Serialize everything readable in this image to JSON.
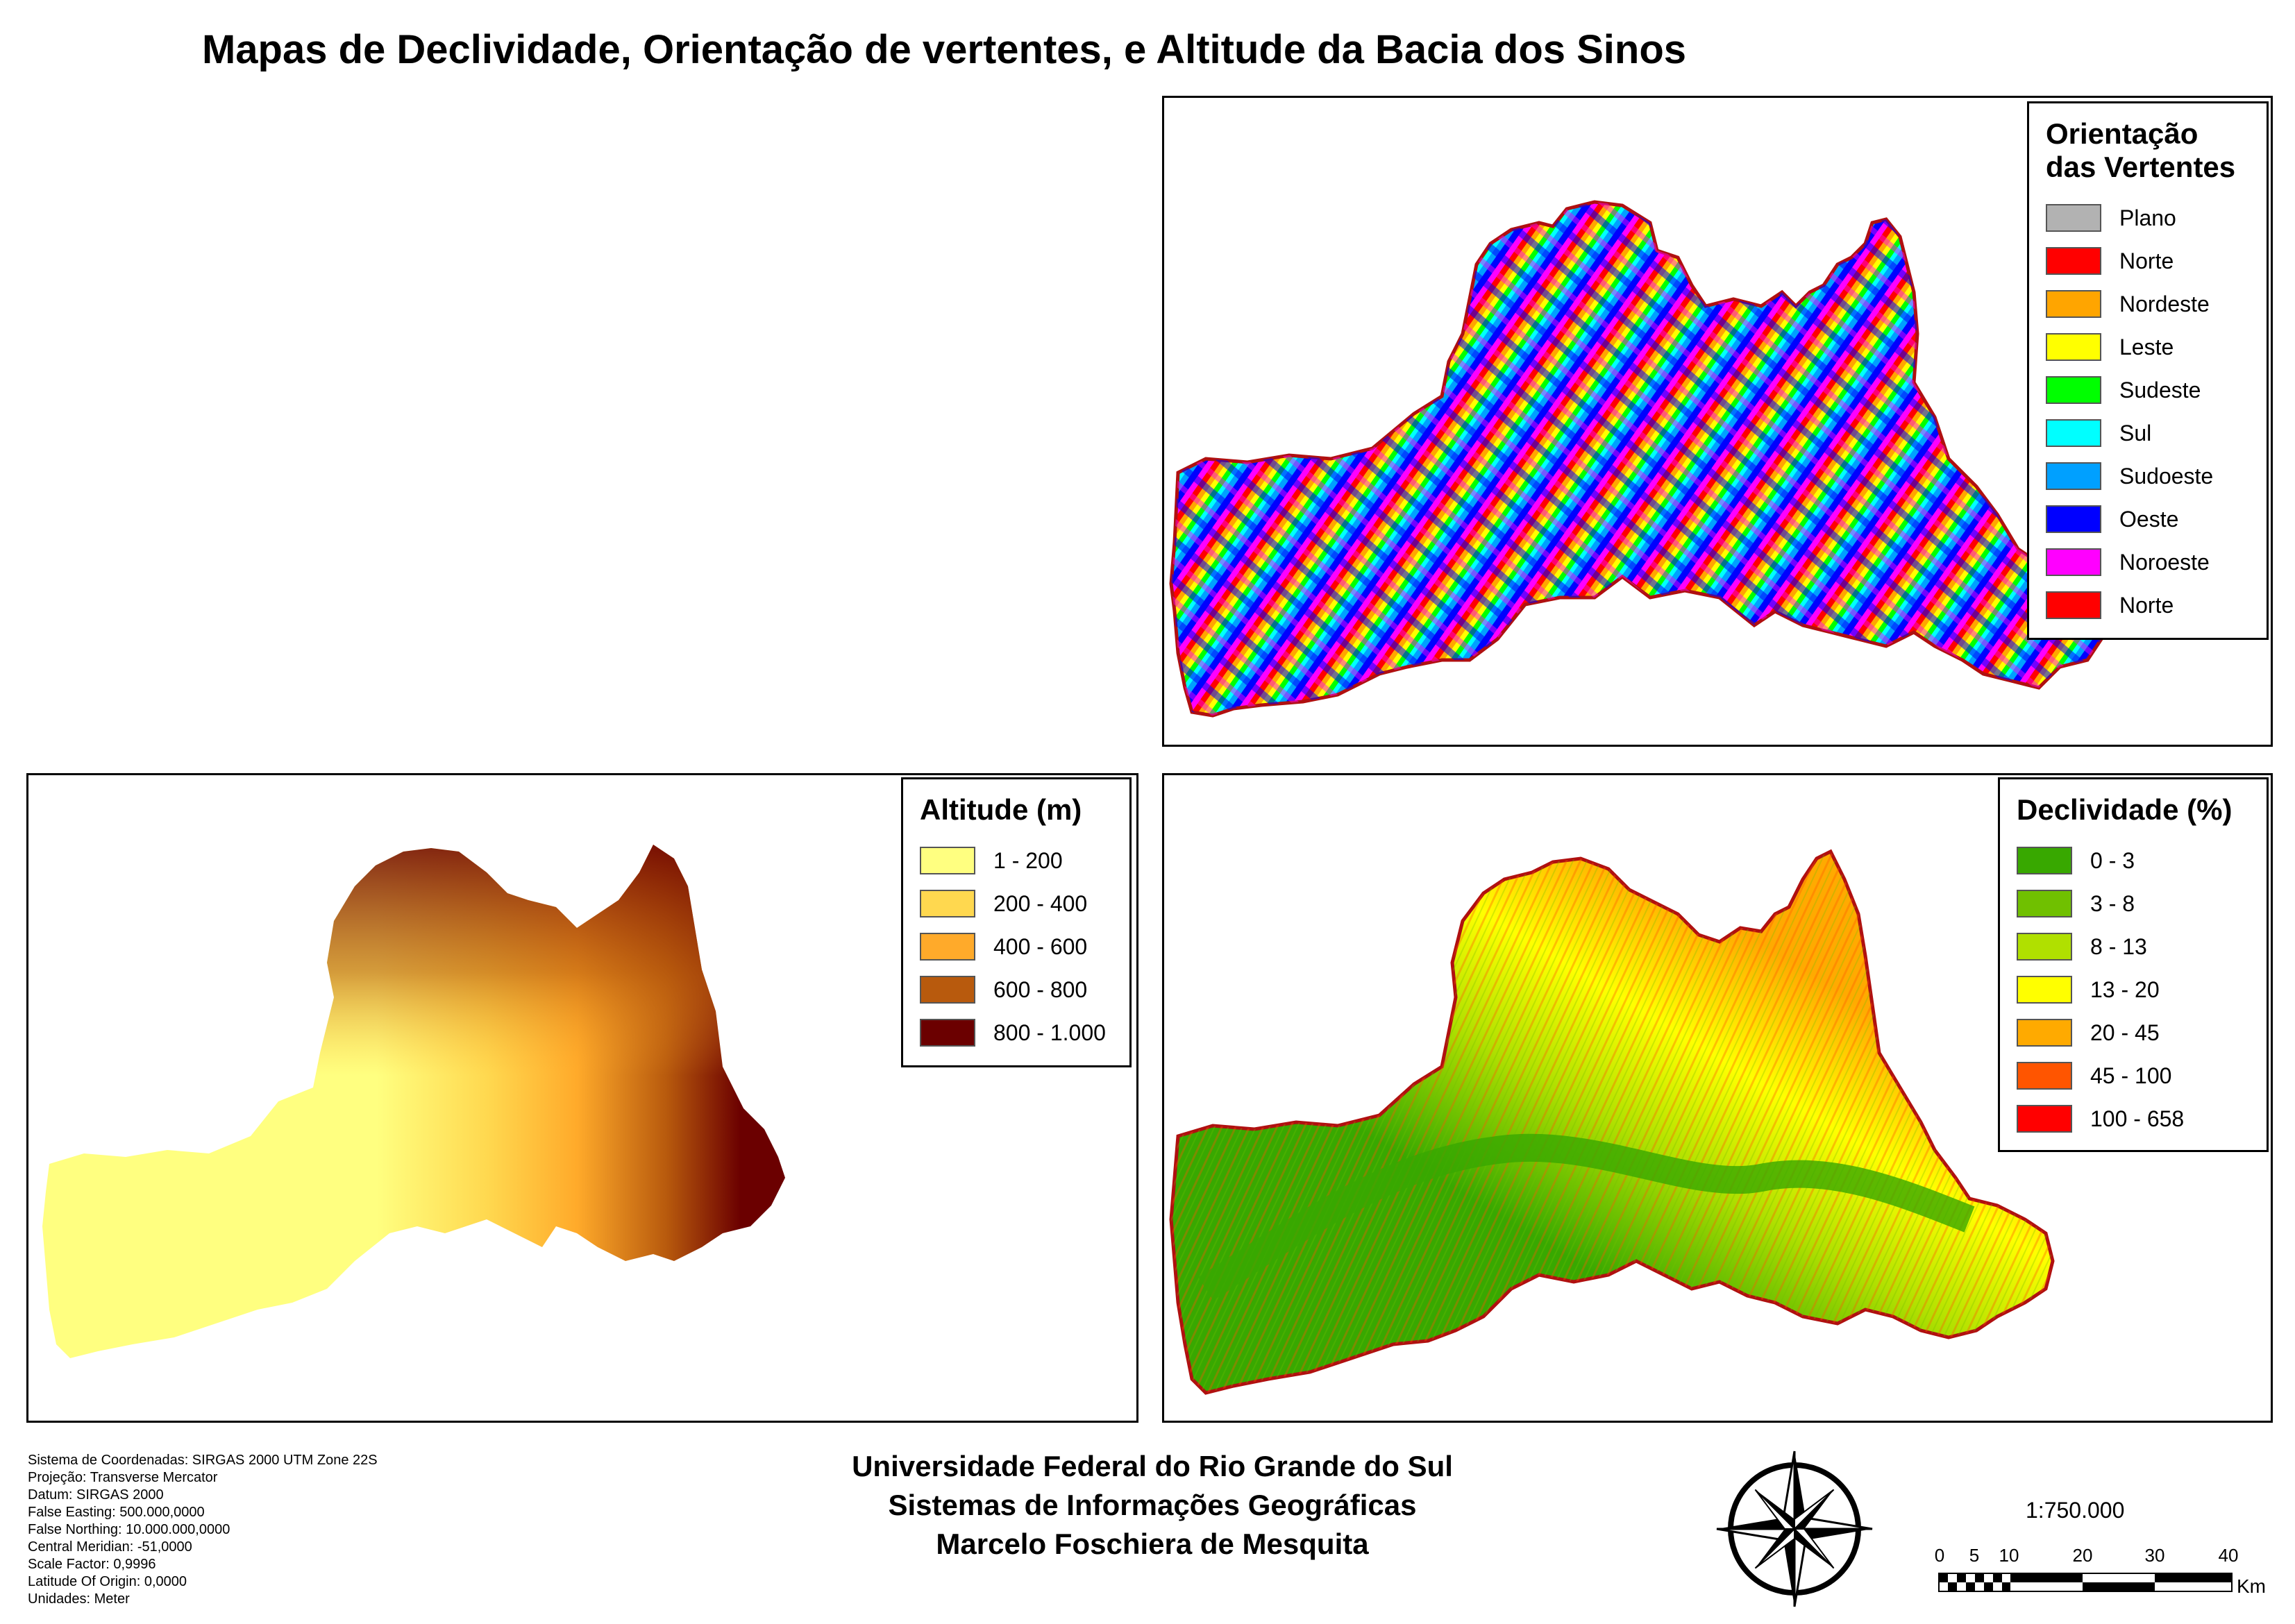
{
  "title": "Mapas de Declividade, Orientação de vertentes, e Altitude da Bacia dos Sinos",
  "aspect_legend": {
    "title_line1": "Orientação",
    "title_line2": "das Vertentes",
    "items": [
      {
        "label": "Plano",
        "color": "#b2b2b2"
      },
      {
        "label": "Norte",
        "color": "#ff0000"
      },
      {
        "label": "Nordeste",
        "color": "#ffa500"
      },
      {
        "label": "Leste",
        "color": "#ffff00"
      },
      {
        "label": "Sudeste",
        "color": "#00ff00"
      },
      {
        "label": "Sul",
        "color": "#00ffff"
      },
      {
        "label": "Sudoeste",
        "color": "#00a0ff"
      },
      {
        "label": "Oeste",
        "color": "#0000ff"
      },
      {
        "label": "Noroeste",
        "color": "#ff00ff"
      },
      {
        "label": "Norte",
        "color": "#ff0000"
      }
    ]
  },
  "altitude_legend": {
    "title": "Altitude (m)",
    "items": [
      {
        "label": "1 - 200",
        "color": "#ffff80"
      },
      {
        "label": "200 - 400",
        "color": "#ffd84f"
      },
      {
        "label": "400 - 600",
        "color": "#ffaa2a"
      },
      {
        "label": "600 - 800",
        "color": "#b85a0d"
      },
      {
        "label": "800 - 1.000",
        "color": "#6b0000"
      }
    ]
  },
  "slope_legend": {
    "title": "Declividade (%)",
    "items": [
      {
        "label": "0 - 3",
        "color": "#38a800"
      },
      {
        "label": "3 - 8",
        "color": "#70c000"
      },
      {
        "label": "8 - 13",
        "color": "#b0e000"
      },
      {
        "label": "13 - 20",
        "color": "#ffff00"
      },
      {
        "label": "20 - 45",
        "color": "#ffaa00"
      },
      {
        "label": "45 - 100",
        "color": "#ff5500"
      },
      {
        "label": "100 - 658",
        "color": "#ff0000"
      }
    ]
  },
  "metadata_lines": [
    "Sistema de Coordenadas: SIRGAS 2000 UTM Zone 22S",
    "Projeção: Transverse Mercator",
    "Datum: SIRGAS 2000",
    "False Easting: 500.000,0000",
    "False Northing: 10.000.000,0000",
    "Central Meridian: -51,0000",
    "Scale Factor: 0,9996",
    "Latitude Of Origin: 0,0000",
    "Unidades: Meter"
  ],
  "credits": {
    "line1": "Universidade Federal do Rio Grande do Sul",
    "line2": "Sistemas de Informações Geográficas",
    "line3": "Marcelo Foschiera de Mesquita"
  },
  "scale": {
    "ratio": "1:750.000",
    "ticks": [
      "0",
      "5",
      "10",
      "20",
      "30",
      "40"
    ],
    "unit": "Km"
  },
  "border_color": "#b01010"
}
